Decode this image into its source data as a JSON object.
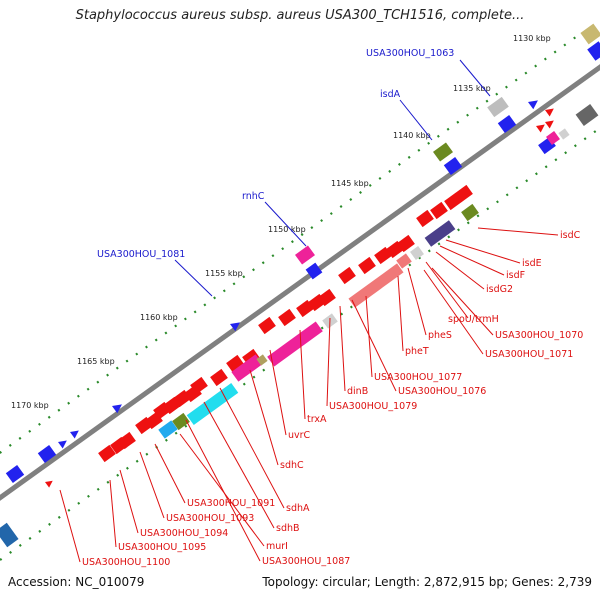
{
  "title": "Staphylococcus aureus subsp. aureus USA300_TCH1516, complete...",
  "footer": {
    "accession": "Accession: NC_010079",
    "topology": "Topology: circular; Length: 2,872,915 bp; Genes: 2,739"
  },
  "ticks": [
    "1130 kbp",
    "1135 kbp",
    "1140 kbp",
    "1145 kbp",
    "1150 kbp",
    "1155 kbp",
    "1160 kbp",
    "1165 kbp",
    "1170 kbp"
  ],
  "genes_blue": [
    "USA300HOU_1063",
    "isdA",
    "rnhC",
    "USA300HOU_1081"
  ],
  "genes_red": [
    "isdC",
    "isdE",
    "isdF",
    "isdG2",
    "spoU/trmH",
    "USA300HOU_1070",
    "USA300HOU_1071",
    "pheS",
    "pheT",
    "USA300HOU_1077",
    "USA300HOU_1076",
    "dinB",
    "USA300HOU_1079",
    "trxA",
    "uvrC",
    "sdhC",
    "sdhA",
    "sdhB",
    "murI",
    "USA300HOU_1087",
    "USA300HOU_1091",
    "USA300HOU_1093",
    "USA300HOU_1094",
    "USA300HOU_1095",
    "USA300HOU_1100"
  ],
  "colors": {
    "backbone": "#808080",
    "tick_dots": "#2a8a2a",
    "blue_label": "#1a1acc",
    "red_label": "#dd1111"
  }
}
